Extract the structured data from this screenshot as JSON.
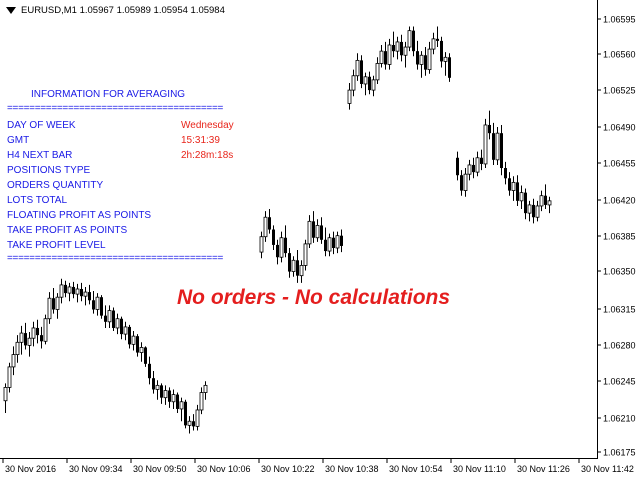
{
  "header": {
    "symbol_info": "EURUSD,M1  1.05967 1.05989 1.05954 1.05984",
    "icon": "triangle-down-icon"
  },
  "info": {
    "title": "INFORMATION FOR AVERAGING",
    "separator": "=======================================",
    "rows": [
      {
        "label": "DAY OF WEEK",
        "value": "Wednesday"
      },
      {
        "label": "GMT",
        "value": "15:31:39"
      },
      {
        "label": "H4 NEXT BAR",
        "value": "2h:28m:18s"
      },
      {
        "label": "POSITIONS TYPE",
        "value": ""
      },
      {
        "label": "ORDERS QUANTITY",
        "value": ""
      },
      {
        "label": "LOTS TOTAL",
        "value": ""
      },
      {
        "label": "FLOATING PROFIT AS POINTS",
        "value": ""
      },
      {
        "label": "TAKE PROFIT AS POINTS",
        "value": ""
      },
      {
        "label": "TAKE PROFIT LEVEL",
        "value": ""
      }
    ]
  },
  "message": "No orders - No calculations",
  "colors": {
    "info_text": "#1a1ae6",
    "value_text": "#e8251b",
    "message_text": "#e41e1e",
    "candle": "#000000"
  },
  "chart_data": {
    "type": "candlestick",
    "y_ticks": [
      "1.06595",
      "1.06560",
      "1.06525",
      "1.06490",
      "1.06455",
      "1.06420",
      "1.06385",
      "1.06350",
      "1.06315",
      "1.06280",
      "1.06245",
      "1.06210",
      "1.06175"
    ],
    "x_ticks": [
      "30 Nov 2016",
      "30 Nov 09:34",
      "30 Nov 09:50",
      "30 Nov 10:06",
      "30 Nov 10:22",
      "30 Nov 10:38",
      "30 Nov 10:54",
      "30 Nov 11:10",
      "30 Nov 11:26",
      "30 Nov 11:42"
    ],
    "ylim": [
      1.06175,
      1.06612
    ],
    "segments": [
      {
        "start": 0,
        "values": [
          [
            1.06225,
            1.06242,
            1.06213,
            1.06238
          ],
          [
            1.06238,
            1.06262,
            1.06233,
            1.06258
          ],
          [
            1.06258,
            1.06278,
            1.0625,
            1.0627
          ],
          [
            1.0627,
            1.06289,
            1.06262,
            1.06282
          ],
          [
            1.06282,
            1.06298,
            1.0627,
            1.06291
          ],
          [
            1.06291,
            1.06301,
            1.06275,
            1.06279
          ],
          [
            1.06279,
            1.06292,
            1.06268,
            1.06286
          ],
          [
            1.06286,
            1.06302,
            1.06278,
            1.06296
          ],
          [
            1.06296,
            1.06304,
            1.06281,
            1.06289
          ],
          [
            1.06289,
            1.06297,
            1.06276,
            1.06283
          ],
          [
            1.06283,
            1.06309,
            1.0628,
            1.06305
          ],
          [
            1.06305,
            1.06331,
            1.063,
            1.06325
          ],
          [
            1.06325,
            1.06335,
            1.0631,
            1.06314
          ],
          [
            1.06314,
            1.0633,
            1.06305,
            1.06326
          ],
          [
            1.06326,
            1.06344,
            1.0632,
            1.06338
          ],
          [
            1.06338,
            1.06342,
            1.06326,
            1.0633
          ],
          [
            1.0633,
            1.0634,
            1.06322,
            1.06336
          ],
          [
            1.06336,
            1.06341,
            1.06325,
            1.06329
          ],
          [
            1.06329,
            1.06339,
            1.06321,
            1.06334
          ],
          [
            1.06334,
            1.0634,
            1.06322,
            1.06327
          ],
          [
            1.06327,
            1.06336,
            1.06318,
            1.06331
          ],
          [
            1.06331,
            1.06338,
            1.06319,
            1.06323
          ],
          [
            1.06323,
            1.06332,
            1.0631,
            1.06314
          ],
          [
            1.06314,
            1.0633,
            1.06308,
            1.06326
          ],
          [
            1.06326,
            1.06328,
            1.06305,
            1.06308
          ],
          [
            1.06308,
            1.06318,
            1.06296,
            1.06302
          ],
          [
            1.06302,
            1.06318,
            1.06296,
            1.06313
          ],
          [
            1.06313,
            1.06316,
            1.06293,
            1.06296
          ],
          [
            1.06296,
            1.0631,
            1.0629,
            1.06305
          ],
          [
            1.06305,
            1.06307,
            1.06285,
            1.0629
          ],
          [
            1.0629,
            1.06302,
            1.06284,
            1.06297
          ],
          [
            1.06297,
            1.06299,
            1.06276,
            1.0628
          ],
          [
            1.0628,
            1.06293,
            1.06274,
            1.06288
          ],
          [
            1.06288,
            1.0629,
            1.06268,
            1.06272
          ],
          [
            1.06272,
            1.06282,
            1.06263,
            1.06277
          ],
          [
            1.06277,
            1.06278,
            1.06258,
            1.06261
          ],
          [
            1.06261,
            1.06268,
            1.06241,
            1.06247
          ],
          [
            1.06247,
            1.06254,
            1.06232,
            1.06236
          ],
          [
            1.06236,
            1.06245,
            1.06226,
            1.0624
          ],
          [
            1.0624,
            1.06242,
            1.06222,
            1.06228
          ],
          [
            1.06228,
            1.0624,
            1.06221,
            1.06235
          ],
          [
            1.06235,
            1.06238,
            1.06218,
            1.06224
          ],
          [
            1.06224,
            1.06236,
            1.06217,
            1.06231
          ],
          [
            1.06231,
            1.06233,
            1.06213,
            1.06217
          ],
          [
            1.06217,
            1.06228,
            1.06205,
            1.06224
          ],
          [
            1.06224,
            1.06226,
            1.06198,
            1.06201
          ],
          [
            1.06201,
            1.0621,
            1.06193,
            1.06205
          ],
          [
            1.06205,
            1.06212,
            1.06196,
            1.062
          ],
          [
            1.062,
            1.06221,
            1.06196,
            1.06216
          ],
          [
            1.06216,
            1.06238,
            1.06212,
            1.06233
          ],
          [
            1.06233,
            1.06244,
            1.06226,
            1.0624
          ]
        ]
      },
      {
        "start": 64,
        "values": [
          [
            1.0637,
            1.0639,
            1.06364,
            1.06385
          ],
          [
            1.06385,
            1.0641,
            1.0638,
            1.06404
          ],
          [
            1.06404,
            1.06412,
            1.06388,
            1.06392
          ],
          [
            1.06392,
            1.06396,
            1.06372,
            1.06377
          ],
          [
            1.06377,
            1.06382,
            1.06358,
            1.06365
          ],
          [
            1.06365,
            1.0639,
            1.0636,
            1.06384
          ],
          [
            1.06384,
            1.06396,
            1.06365,
            1.06369
          ],
          [
            1.06369,
            1.06374,
            1.06345,
            1.06351
          ],
          [
            1.06351,
            1.06366,
            1.06346,
            1.06362
          ],
          [
            1.06362,
            1.06372,
            1.0634,
            1.06347
          ],
          [
            1.06347,
            1.06362,
            1.0634,
            1.06357
          ],
          [
            1.06357,
            1.06382,
            1.06352,
            1.06378
          ],
          [
            1.06378,
            1.06406,
            1.06374,
            1.064
          ],
          [
            1.064,
            1.0641,
            1.06379,
            1.06384
          ],
          [
            1.06384,
            1.06402,
            1.0638,
            1.06396
          ],
          [
            1.06396,
            1.06404,
            1.06378,
            1.06382
          ],
          [
            1.06382,
            1.06394,
            1.06366,
            1.06371
          ],
          [
            1.06371,
            1.06388,
            1.06366,
            1.06384
          ],
          [
            1.06384,
            1.0639,
            1.06368,
            1.06374
          ],
          [
            1.06374,
            1.0639,
            1.06369,
            1.06386
          ],
          [
            1.06386,
            1.06392,
            1.0637,
            1.06376
          ]
        ]
      },
      {
        "start": 86,
        "values": [
          [
            1.06515,
            1.06535,
            1.06509,
            1.06528
          ],
          [
            1.06528,
            1.06548,
            1.06522,
            1.06542
          ],
          [
            1.06542,
            1.06564,
            1.06537,
            1.06557
          ],
          [
            1.06557,
            1.06562,
            1.0653,
            1.06534
          ],
          [
            1.06534,
            1.06545,
            1.06523,
            1.06541
          ],
          [
            1.06541,
            1.06546,
            1.06524,
            1.06528
          ],
          [
            1.06528,
            1.06542,
            1.06522,
            1.06538
          ],
          [
            1.06538,
            1.0656,
            1.06534,
            1.06554
          ],
          [
            1.06554,
            1.06572,
            1.0655,
            1.06566
          ],
          [
            1.06566,
            1.06575,
            1.06548,
            1.06553
          ],
          [
            1.06553,
            1.06578,
            1.06548,
            1.06572
          ],
          [
            1.06572,
            1.06585,
            1.0656,
            1.06566
          ],
          [
            1.06566,
            1.0658,
            1.06558,
            1.06575
          ],
          [
            1.06575,
            1.06582,
            1.06556,
            1.06562
          ],
          [
            1.06562,
            1.06575,
            1.0655,
            1.0657
          ],
          [
            1.0657,
            1.0659,
            1.06566,
            1.06586
          ],
          [
            1.06586,
            1.0659,
            1.06561,
            1.06566
          ],
          [
            1.06566,
            1.06576,
            1.06548,
            1.06553
          ],
          [
            1.06553,
            1.06566,
            1.0654,
            1.06562
          ],
          [
            1.06562,
            1.0657,
            1.06542,
            1.06548
          ],
          [
            1.06548,
            1.06575,
            1.06544,
            1.06568
          ],
          [
            1.06568,
            1.06584,
            1.06563,
            1.06578
          ],
          [
            1.06578,
            1.0659,
            1.0657,
            1.06576
          ],
          [
            1.06576,
            1.0658,
            1.0655,
            1.06556
          ],
          [
            1.06556,
            1.06565,
            1.06542,
            1.0656
          ],
          [
            1.0656,
            1.06564,
            1.06536,
            1.0654
          ]
        ]
      },
      {
        "start": 113,
        "values": [
          [
            1.06462,
            1.06468,
            1.0644,
            1.06445
          ],
          [
            1.06445,
            1.0645,
            1.06425,
            1.0643
          ],
          [
            1.0643,
            1.06452,
            1.06424,
            1.06446
          ],
          [
            1.06446,
            1.0646,
            1.0644,
            1.06455
          ],
          [
            1.06455,
            1.06462,
            1.06442,
            1.06448
          ],
          [
            1.06448,
            1.06468,
            1.06444,
            1.06462
          ],
          [
            1.06462,
            1.0647,
            1.0645,
            1.06456
          ],
          [
            1.06456,
            1.065,
            1.06452,
            1.06494
          ],
          [
            1.06494,
            1.06508,
            1.0648,
            1.06486
          ],
          [
            1.06486,
            1.06496,
            1.06455,
            1.0646
          ],
          [
            1.0646,
            1.06492,
            1.06455,
            1.06486
          ],
          [
            1.06486,
            1.06494,
            1.06445,
            1.06452
          ],
          [
            1.06452,
            1.06458,
            1.06436,
            1.06442
          ],
          [
            1.06442,
            1.06448,
            1.06425,
            1.0643
          ],
          [
            1.0643,
            1.06444,
            1.0642,
            1.06438
          ],
          [
            1.06438,
            1.06445,
            1.06415,
            1.0642
          ],
          [
            1.0642,
            1.06435,
            1.06412,
            1.06428
          ],
          [
            1.06428,
            1.06432,
            1.06402,
            1.06408
          ],
          [
            1.06408,
            1.0642,
            1.064,
            1.06416
          ],
          [
            1.06416,
            1.06422,
            1.06398,
            1.06404
          ],
          [
            1.06404,
            1.0642,
            1.064,
            1.06415
          ],
          [
            1.06415,
            1.0643,
            1.0641,
            1.06425
          ],
          [
            1.06425,
            1.06436,
            1.06412,
            1.06416
          ],
          [
            1.06416,
            1.06424,
            1.06408,
            1.0642
          ]
        ]
      }
    ]
  }
}
